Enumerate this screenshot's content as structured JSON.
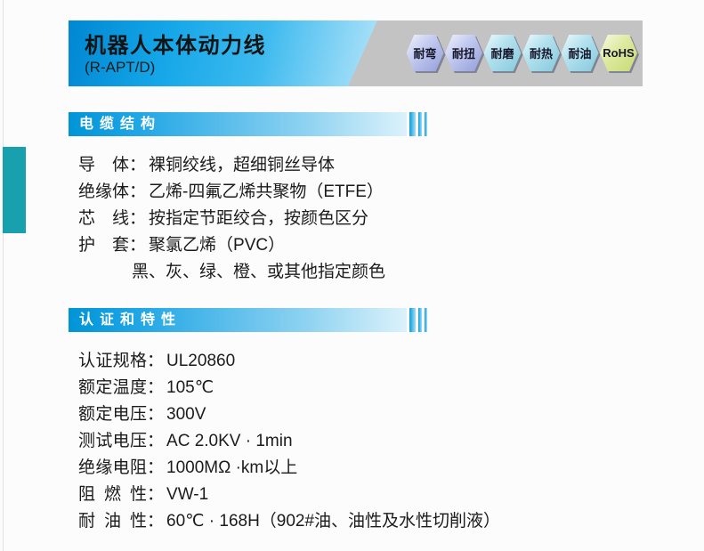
{
  "header": {
    "title": "机器人本体动力线",
    "subtitle": "(R-APT/D)",
    "accent_blue": "#00a0e9",
    "banner_gray": "#c3c3c4",
    "badges": [
      {
        "label": "耐弯",
        "color": "#a9b2e4"
      },
      {
        "label": "耐扭",
        "color": "#a9b2e4"
      },
      {
        "label": "耐磨",
        "color": "#9dd5e8"
      },
      {
        "label": "耐热",
        "color": "#9dd5e8"
      },
      {
        "label": "耐油",
        "color": "#9dd5e8"
      },
      {
        "label": "RoHS",
        "color": "#d4e287"
      }
    ]
  },
  "left_accent_color": "#18a0ae",
  "sections": [
    {
      "title": "电缆结构",
      "rows": [
        {
          "label": "导体",
          "colon": "：",
          "value": "裸铜绞线，超细铜丝导体"
        },
        {
          "label": "绝缘体",
          "colon": "：",
          "value": "乙烯-四氟乙烯共聚物（ETFE）"
        },
        {
          "label": "芯线",
          "colon": "：",
          "value": "按指定节距绞合，按颜色区分"
        },
        {
          "label": "护套",
          "colon": "：",
          "value": "聚氯乙烯（PVC）"
        },
        {
          "label": "",
          "colon": "",
          "value": "黑、灰、绿、橙、或其他指定颜色"
        }
      ]
    },
    {
      "title": "认证和特性",
      "rows": [
        {
          "label": "认证规格",
          "colon": "：",
          "value": "UL20860"
        },
        {
          "label": "额定温度",
          "colon": "：",
          "value": "105℃"
        },
        {
          "label": "额定电压",
          "colon": "：",
          "value": "300V"
        },
        {
          "label": "测试电压",
          "colon": "：",
          "value": "AC 2.0KV · 1min"
        },
        {
          "label": "绝缘电阻",
          "colon": "：",
          "value": "1000MΩ ·km以上"
        },
        {
          "label": "阻燃性",
          "colon": "：",
          "value": "VW-1"
        },
        {
          "label": "耐油性",
          "colon": "：",
          "value": "60℃ · 168H（902#油、油性及水性切削液）"
        }
      ]
    }
  ]
}
